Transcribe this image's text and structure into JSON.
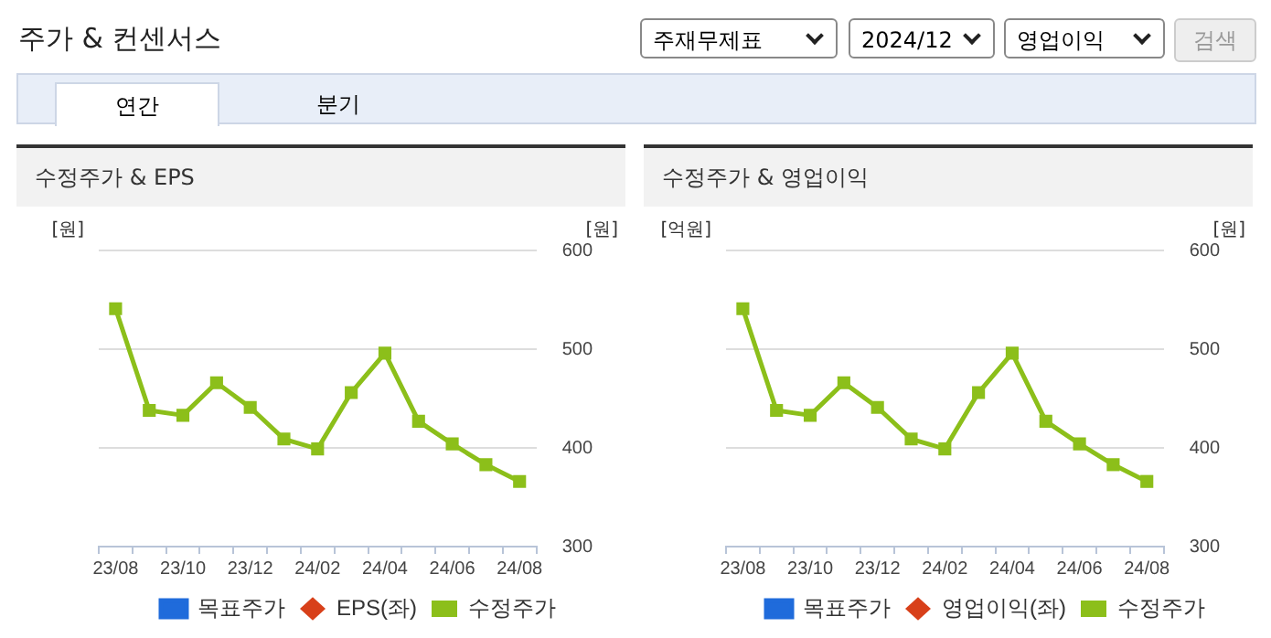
{
  "chart_data": [
    {
      "type": "other",
      "title": "주가 & 컨센서스",
      "annotations": [
        "주재무제표",
        "2024/12",
        "영업이익",
        "검색",
        "연간",
        "분기"
      ]
    },
    {
      "type": "line",
      "title": "수정주가 & EPS",
      "ylabel": "[원]",
      "y2label": "[원]",
      "categories": [
        "23/08",
        null,
        "23/10",
        null,
        "23/12",
        null,
        "24/02",
        null,
        "24/04",
        null,
        "24/06",
        null,
        "24/08"
      ],
      "series": [
        {
          "name": "목표주가",
          "type": "bar",
          "color": "#1f6bdb",
          "axis": "y",
          "values": [
            null,
            null,
            null,
            null,
            null,
            null,
            null,
            null,
            null,
            null,
            null,
            null,
            null
          ]
        },
        {
          "name": "EPS(좌)",
          "type": "line",
          "color": "#d8401a",
          "marker": "diamond",
          "axis": "y",
          "values": [
            null,
            null,
            null,
            null,
            null,
            null,
            null,
            null,
            null,
            null,
            null,
            null,
            null
          ]
        },
        {
          "name": "수정주가",
          "type": "line",
          "color": "#8cbf1a",
          "marker": "square",
          "axis": "y2",
          "values": [
            541,
            438,
            433,
            466,
            441,
            409,
            399,
            456,
            496,
            427,
            404,
            383,
            366
          ]
        }
      ],
      "y2lim": [
        300,
        600
      ],
      "y2ticks": [
        300,
        400,
        500,
        600
      ],
      "grid": "y",
      "legend": "bottom"
    },
    {
      "type": "line",
      "title": "수정주가 & 영업이익",
      "ylabel": "[억원]",
      "y2label": "[원]",
      "categories": [
        "23/08",
        null,
        "23/10",
        null,
        "23/12",
        null,
        "24/02",
        null,
        "24/04",
        null,
        "24/06",
        null,
        "24/08"
      ],
      "series": [
        {
          "name": "목표주가",
          "type": "bar",
          "color": "#1f6bdb",
          "axis": "y",
          "values": [
            null,
            null,
            null,
            null,
            null,
            null,
            null,
            null,
            null,
            null,
            null,
            null,
            null
          ]
        },
        {
          "name": "영업이익(좌)",
          "type": "line",
          "color": "#d8401a",
          "marker": "diamond",
          "axis": "y",
          "values": [
            null,
            null,
            null,
            null,
            null,
            null,
            null,
            null,
            null,
            null,
            null,
            null,
            null
          ]
        },
        {
          "name": "수정주가",
          "type": "line",
          "color": "#8cbf1a",
          "marker": "square",
          "axis": "y2",
          "values": [
            541,
            438,
            433,
            466,
            441,
            409,
            399,
            456,
            496,
            427,
            404,
            383,
            366
          ]
        }
      ],
      "y2lim": [
        300,
        600
      ],
      "y2ticks": [
        300,
        400,
        500,
        600
      ],
      "grid": "y",
      "legend": "bottom"
    }
  ]
}
